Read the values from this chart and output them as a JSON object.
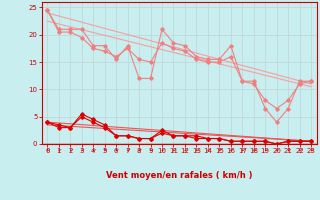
{
  "xlabel": "Vent moyen/en rafales ( km/h )",
  "bg_color": "#c8eef0",
  "xlim": [
    -0.5,
    23.5
  ],
  "ylim": [
    0,
    26
  ],
  "yticks": [
    0,
    5,
    10,
    15,
    20,
    25
  ],
  "xticks": [
    0,
    1,
    2,
    3,
    4,
    5,
    6,
    7,
    8,
    9,
    10,
    11,
    12,
    13,
    14,
    15,
    16,
    17,
    18,
    19,
    20,
    21,
    22,
    23
  ],
  "line1_x": [
    0,
    1,
    2,
    3,
    4,
    5,
    6,
    7,
    8,
    9,
    10,
    11,
    12,
    13,
    14,
    15,
    16,
    17,
    18,
    19,
    20,
    21,
    22,
    23
  ],
  "line1_y": [
    24.5,
    21.0,
    21.0,
    21.0,
    18.0,
    18.0,
    15.5,
    18.0,
    12.0,
    12.0,
    21.0,
    18.5,
    18.0,
    16.0,
    15.5,
    15.5,
    18.0,
    11.5,
    11.5,
    6.5,
    4.0,
    6.5,
    11.5,
    11.5
  ],
  "line2_x": [
    0,
    1,
    2,
    3,
    4,
    5,
    6,
    7,
    8,
    9,
    10,
    11,
    12,
    13,
    14,
    15,
    16,
    17,
    18,
    19,
    20,
    21,
    22,
    23
  ],
  "line2_y": [
    24.5,
    20.5,
    20.5,
    19.5,
    17.5,
    17.0,
    16.0,
    17.5,
    15.5,
    15.0,
    18.5,
    17.5,
    17.0,
    15.5,
    15.0,
    15.0,
    16.0,
    11.5,
    11.0,
    8.0,
    6.5,
    8.0,
    11.0,
    11.5
  ],
  "line3_x": [
    0,
    23
  ],
  "line3_y": [
    24.0,
    11.0
  ],
  "line4_x": [
    0,
    23
  ],
  "line4_y": [
    22.5,
    10.5
  ],
  "line5_x": [
    0,
    1,
    2,
    3,
    4,
    5,
    6,
    7,
    8,
    9,
    10,
    11,
    12,
    13,
    14,
    15,
    16,
    17,
    18,
    19,
    20,
    21,
    22,
    23
  ],
  "line5_y": [
    4.0,
    3.5,
    3.0,
    5.5,
    4.5,
    3.5,
    1.5,
    1.5,
    1.0,
    1.0,
    2.5,
    1.5,
    1.5,
    1.5,
    1.0,
    1.0,
    0.5,
    0.5,
    0.5,
    0.5,
    0.0,
    0.5,
    0.5,
    0.5
  ],
  "line6_x": [
    0,
    1,
    2,
    3,
    4,
    5,
    6,
    7,
    8,
    9,
    10,
    11,
    12,
    13,
    14,
    15,
    16,
    17,
    18,
    19,
    20,
    21,
    22,
    23
  ],
  "line6_y": [
    4.0,
    3.0,
    3.0,
    5.0,
    4.0,
    3.0,
    1.5,
    1.5,
    1.0,
    1.0,
    2.0,
    1.5,
    1.5,
    1.0,
    1.0,
    1.0,
    0.5,
    0.5,
    0.5,
    0.5,
    0.0,
    0.5,
    0.5,
    0.5
  ],
  "line7_x": [
    0,
    23
  ],
  "line7_y": [
    4.0,
    0.5
  ],
  "line8_x": [
    0,
    23
  ],
  "line8_y": [
    3.5,
    0.5
  ],
  "color_light": "#f08080",
  "color_dark": "#dd0000",
  "color_trend_light": "#f4a0a0",
  "color_trend_dark": "#ee5555",
  "arrow_color": "#dd0000",
  "grid_color": "#c0d8da",
  "spine_color": "#cc0000",
  "tick_color": "#cc0000",
  "xlabel_color": "#cc0000"
}
